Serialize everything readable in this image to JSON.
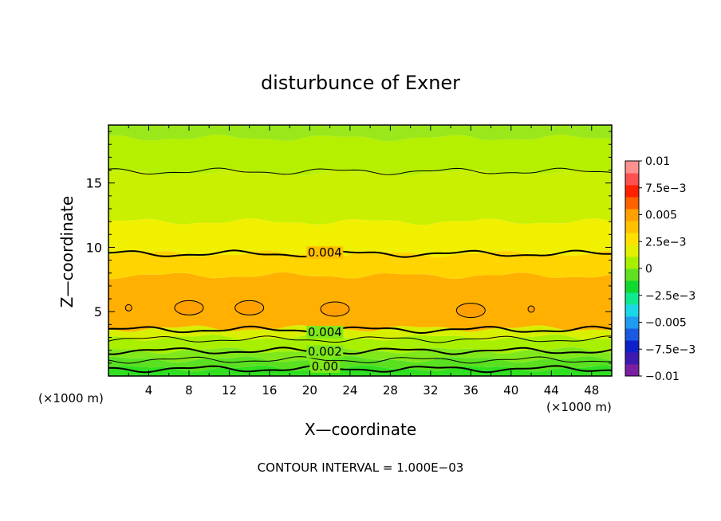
{
  "chart_data": {
    "type": "heatmap",
    "title": "disturbunce of Exner",
    "xlabel": "X—coordinate",
    "ylabel": "Z—coordinate",
    "x_unit_left": "(×1000 m)",
    "x_unit_right": "(×1000 m)",
    "footer": "CONTOUR INTERVAL = 1.000E−03",
    "xlim": [
      0,
      50
    ],
    "ylim": [
      0,
      19.5
    ],
    "x_ticks": [
      4,
      8,
      12,
      16,
      20,
      24,
      28,
      32,
      36,
      40,
      44,
      48
    ],
    "y_ticks": [
      5,
      10,
      15
    ],
    "x_tick_labels": [
      "4",
      "8",
      "12",
      "16",
      "20",
      "24",
      "28",
      "32",
      "36",
      "40",
      "44",
      "48"
    ],
    "y_tick_labels": [
      "5",
      "10",
      "15"
    ],
    "colorbar": {
      "min": -0.01,
      "max": 0.01,
      "labels": [
        {
          "value": 0.01,
          "text": "0.01"
        },
        {
          "value": 0.0075,
          "text": "7.5e−3"
        },
        {
          "value": 0.005,
          "text": "0.005"
        },
        {
          "value": 0.0025,
          "text": "2.5e−3"
        },
        {
          "value": 0,
          "text": "0"
        },
        {
          "value": -0.0025,
          "text": "−2.5e−3"
        },
        {
          "value": -0.005,
          "text": "−0.005"
        },
        {
          "value": -0.0075,
          "text": "−7.5e−3"
        },
        {
          "value": -0.01,
          "text": "−0.01"
        }
      ],
      "colors": [
        "#7a1fa2",
        "#3d1ab0",
        "#1020c8",
        "#1a5ae0",
        "#1f9cf0",
        "#1ad8e8",
        "#10e890",
        "#10d830",
        "#60e020",
        "#a8f000",
        "#e0f000",
        "#ffe000",
        "#ffc000",
        "#ffa000",
        "#ff6000",
        "#ff2000",
        "#ff5050",
        "#ff9090"
      ]
    },
    "bands": [
      {
        "z_top": 0.6,
        "value": 0.0001,
        "color": "#30e020"
      },
      {
        "z_top": 1.3,
        "value": 0.0008,
        "color": "#5ae020"
      },
      {
        "z_top": 2.0,
        "value": 0.0016,
        "color": "#80e81a"
      },
      {
        "z_top": 3.0,
        "value": 0.0024,
        "color": "#a8f000"
      },
      {
        "z_top": 3.7,
        "value": 0.0033,
        "color": "#d8f000"
      },
      {
        "z_top": 7.8,
        "value": 0.0047,
        "color": "#ffb000"
      },
      {
        "z_top": 9.5,
        "value": 0.0042,
        "color": "#ffd400"
      },
      {
        "z_top": 12.0,
        "value": 0.0036,
        "color": "#f0f000"
      },
      {
        "z_top": 15.8,
        "value": 0.0028,
        "color": "#c8f000"
      },
      {
        "z_top": 18.5,
        "value": 0.0021,
        "color": "#b4f000"
      },
      {
        "z_top": 19.5,
        "value": 0.0016,
        "color": "#9ae81a"
      }
    ],
    "contours": [
      {
        "level": 0.0,
        "label": "0.00",
        "z": 0.55
      },
      {
        "level": 0.001,
        "label": "",
        "z": 1.25
      },
      {
        "level": 0.002,
        "label": "0.002",
        "z": 1.95
      },
      {
        "level": 0.003,
        "label": "",
        "z": 2.85
      },
      {
        "level": 0.004,
        "label": "0.004",
        "z": 3.6
      },
      {
        "level": 0.004,
        "label": "0.004",
        "z": 9.5
      },
      {
        "level": 0.003,
        "label": "",
        "z": 15.9
      }
    ],
    "cells": [
      {
        "x": 2.0,
        "z": 5.3,
        "value": 0.005
      },
      {
        "x": 8.0,
        "z": 5.3,
        "value": 0.005
      },
      {
        "x": 14.0,
        "z": 5.3,
        "value": 0.005
      },
      {
        "x": 22.5,
        "z": 5.2,
        "value": 0.005
      },
      {
        "x": 36.0,
        "z": 5.1,
        "value": 0.005
      },
      {
        "x": 42.0,
        "z": 5.2,
        "value": 0.005
      }
    ]
  }
}
